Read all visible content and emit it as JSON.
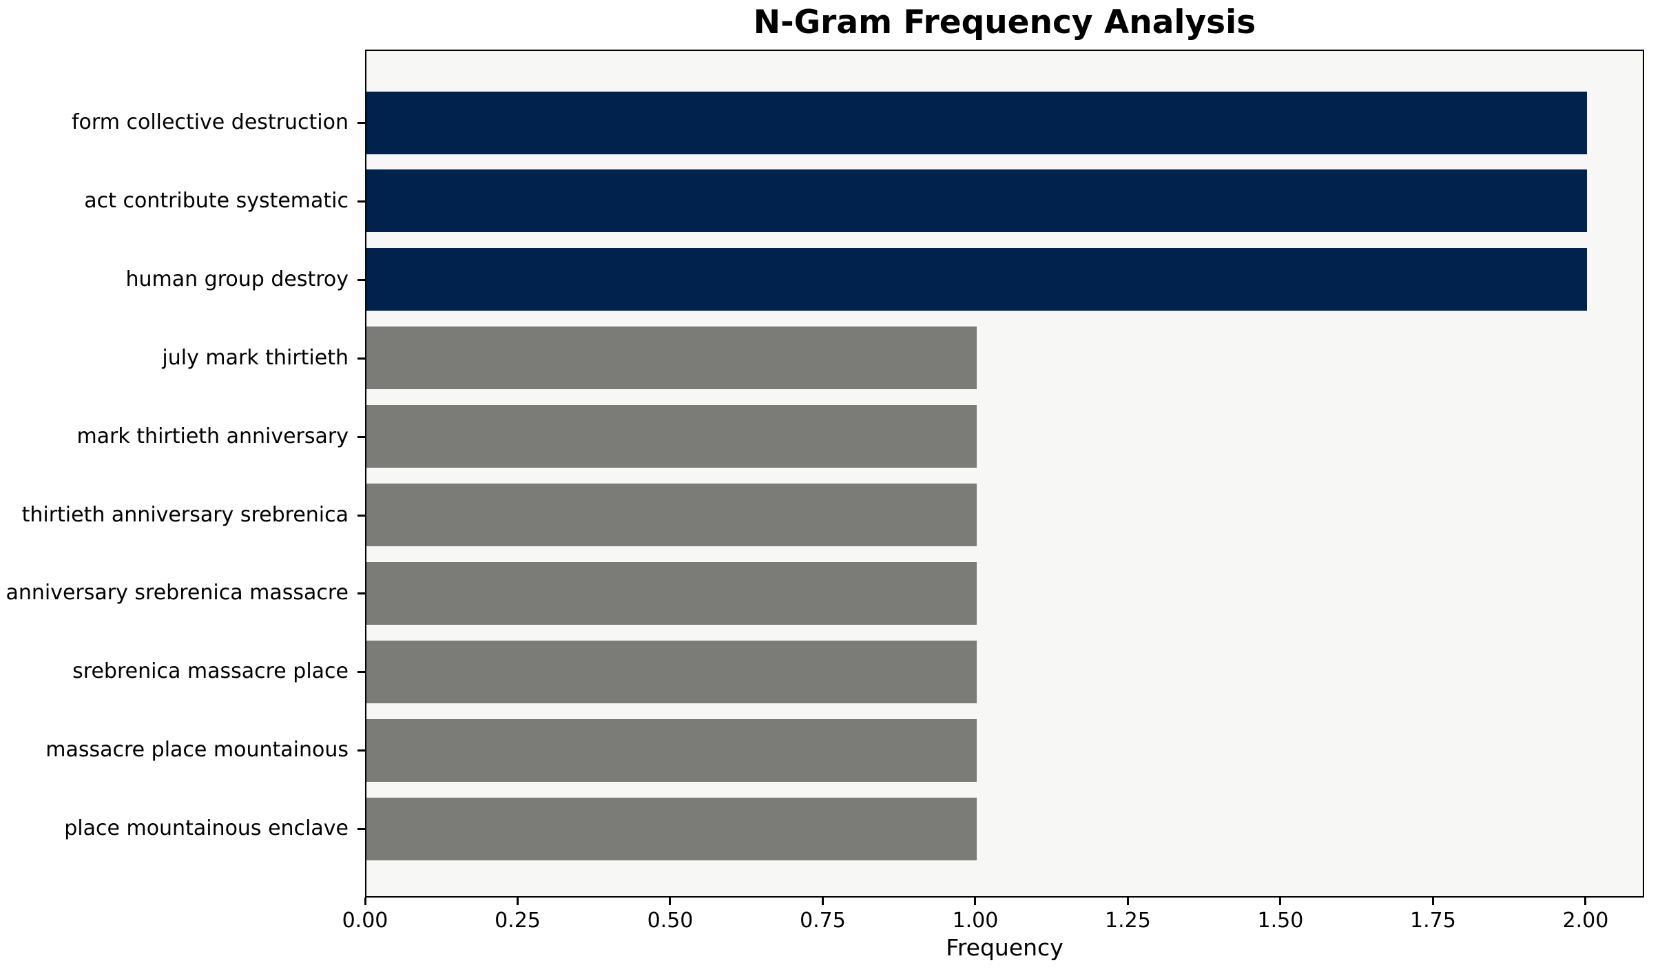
{
  "chart_data": {
    "type": "bar",
    "orientation": "horizontal",
    "title": "N-Gram Frequency Analysis",
    "xlabel": "Frequency",
    "ylabel": "",
    "categories": [
      "form collective destruction",
      "act contribute systematic",
      "human group destroy",
      "july mark thirtieth",
      "mark thirtieth anniversary",
      "thirtieth anniversary srebrenica",
      "anniversary srebrenica massacre",
      "srebrenica massacre place",
      "massacre place mountainous",
      "place mountainous enclave"
    ],
    "values": [
      2,
      2,
      2,
      1,
      1,
      1,
      1,
      1,
      1,
      1
    ],
    "bar_colors": [
      "#02224e",
      "#02224e",
      "#02224e",
      "#7b7b78",
      "#7b7b78",
      "#7b7b78",
      "#7b7b78",
      "#7b7b78",
      "#7b7b78",
      "#7b7b78"
    ],
    "x_ticks": [
      {
        "value": 0.0,
        "label": "0.00"
      },
      {
        "value": 0.25,
        "label": "0.25"
      },
      {
        "value": 0.5,
        "label": "0.50"
      },
      {
        "value": 0.75,
        "label": "0.75"
      },
      {
        "value": 1.0,
        "label": "1.00"
      },
      {
        "value": 1.25,
        "label": "1.25"
      },
      {
        "value": 1.5,
        "label": "1.50"
      },
      {
        "value": 1.75,
        "label": "1.75"
      },
      {
        "value": 2.0,
        "label": "2.00"
      }
    ],
    "xlim": [
      0,
      2.096
    ],
    "grid": false,
    "legend": null,
    "colors": {
      "highlight_bar": "#02224e",
      "default_bar": "#7b7b78",
      "plot_background": "#f7f7f5",
      "figure_background": "#ffffff",
      "spine": "#000000",
      "text": "#000000"
    }
  }
}
